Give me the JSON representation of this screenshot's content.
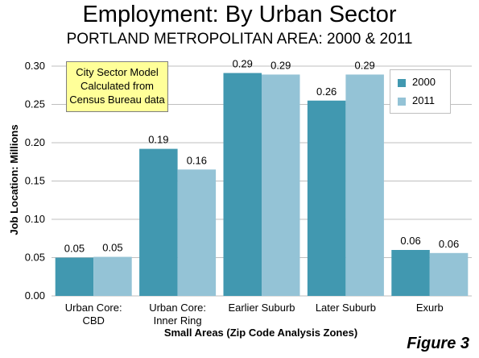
{
  "title": "Employment: By Urban Sector",
  "subtitle": "PORTLAND METROPOLITAN AREA: 2000 & 2011",
  "note_lines": [
    "City Sector Model",
    "Calculated from",
    "Census Bureau data"
  ],
  "figure_label": "Figure 3",
  "colors": {
    "s2000": "#4198b0",
    "s2011": "#94c3d6",
    "grid": "#bfbfbf"
  },
  "chart_data": {
    "type": "bar",
    "categories": [
      [
        "Urban Core:",
        "CBD"
      ],
      [
        "Urban Core:",
        "Inner Ring"
      ],
      [
        "Earlier Suburb"
      ],
      [
        "Later Suburb"
      ],
      [
        "Exurb"
      ]
    ],
    "series": [
      {
        "name": "2000",
        "values": [
          0.05,
          0.192,
          0.291,
          0.255,
          0.06
        ],
        "labels": [
          "0.05",
          "0.19",
          "0.29",
          "0.26",
          "0.06"
        ]
      },
      {
        "name": "2011",
        "values": [
          0.051,
          0.165,
          0.289,
          0.289,
          0.056
        ],
        "labels": [
          "0.05",
          "0.16",
          "0.29",
          "0.29",
          "0.06"
        ]
      }
    ],
    "yticks": [
      "0.00",
      "0.05",
      "0.10",
      "0.15",
      "0.20",
      "0.25",
      "0.30"
    ],
    "ylim": [
      0,
      0.3
    ],
    "xlabel": "Small Areas (Zip Code Analysis Zones)",
    "ylabel": "Job Location: Millions",
    "grid": true,
    "legend_position": "top-right"
  }
}
